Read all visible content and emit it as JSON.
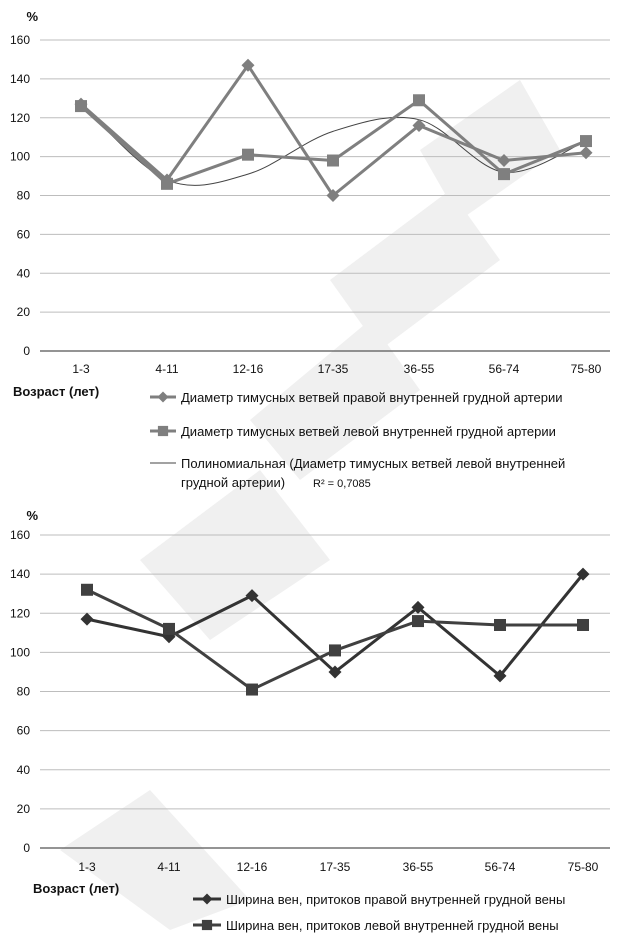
{
  "chart_data": [
    {
      "type": "line",
      "ylabel": "%",
      "xlabel": "Возраст (лет)",
      "categories": [
        "1-3",
        "4-11",
        "12-16",
        "17-35",
        "36-55",
        "56-74",
        "75-80"
      ],
      "ylim": [
        0,
        160
      ],
      "yticks": [
        0,
        20,
        40,
        60,
        80,
        100,
        120,
        140,
        160
      ],
      "grid": true,
      "legend_position": "bottom",
      "series": [
        {
          "name": "Диаметр тимусных ветвей правой внутренней грудной артерии",
          "marker": "diamond",
          "color": "#7f7f7f",
          "values": [
            127,
            88,
            147,
            80,
            116,
            98,
            102
          ]
        },
        {
          "name": "Диаметр тимусных ветвей левой внутренней грудной артерии",
          "marker": "square",
          "color": "#7f7f7f",
          "values": [
            126,
            86,
            101,
            98,
            129,
            91,
            108
          ]
        }
      ],
      "trendline": {
        "name": "Полиномиальная (Диаметр тимусных ветвей левой внутренней грудной артерии)",
        "r2_label": "R² = 0,7085",
        "color": "#444444",
        "values": [
          127,
          88,
          91,
          113,
          119,
          92,
          108
        ]
      }
    },
    {
      "type": "line",
      "ylabel": "%",
      "xlabel": "Возраст (лет)",
      "categories": [
        "1-3",
        "4-11",
        "12-16",
        "17-35",
        "36-55",
        "56-74",
        "75-80"
      ],
      "ylim": [
        0,
        160
      ],
      "yticks": [
        0,
        20,
        40,
        60,
        80,
        100,
        120,
        140,
        160
      ],
      "grid": true,
      "legend_position": "bottom",
      "series": [
        {
          "name": "Ширина вен, притоков правой внутренней грудной вены",
          "marker": "diamond",
          "color": "#333333",
          "values": [
            117,
            108,
            129,
            90,
            123,
            88,
            140
          ]
        },
        {
          "name": "Ширина вен, притоков левой внутренней грудной вены",
          "marker": "square",
          "color": "#404040",
          "values": [
            132,
            112,
            81,
            101,
            116,
            114,
            114
          ]
        }
      ]
    }
  ]
}
